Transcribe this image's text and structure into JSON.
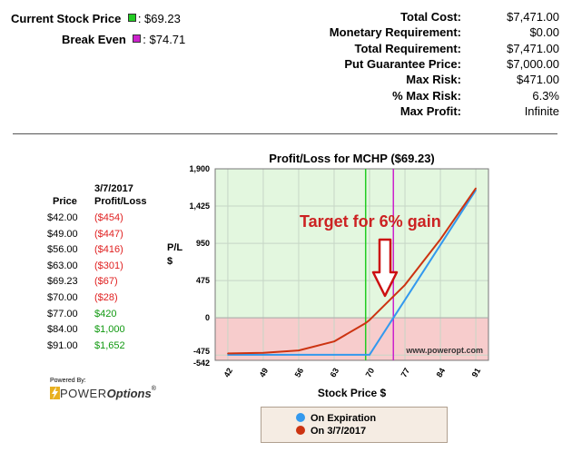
{
  "header": {
    "current_price_label": "Current Stock Price",
    "current_price_value": ": $69.23",
    "break_even_label": "Break Even",
    "break_even_value": ": $74.71",
    "current_marker_color": "#22cc22",
    "break_even_marker_color": "#cc22cc"
  },
  "summary": [
    {
      "label": "Total Cost:",
      "value": "$7,471.00"
    },
    {
      "label": "Monetary Requirement:",
      "value": "$0.00"
    },
    {
      "label": "Total Requirement:",
      "value": "$7,471.00"
    },
    {
      "label": "Put Guarantee Price:",
      "value": "$7,000.00"
    },
    {
      "label": "Max Risk:",
      "value": "$471.00"
    },
    {
      "label": "% Max Risk:",
      "value": "6.3%"
    },
    {
      "label": "Max Profit:",
      "value": "Infinite"
    }
  ],
  "pl_table": {
    "date_header": "3/7/2017",
    "price_header": "Price",
    "pl_header": "Profit/Loss",
    "rows": [
      {
        "price": "$42.00",
        "pl": "($454)",
        "sign": "neg"
      },
      {
        "price": "$49.00",
        "pl": "($447)",
        "sign": "neg"
      },
      {
        "price": "$56.00",
        "pl": "($416)",
        "sign": "neg"
      },
      {
        "price": "$63.00",
        "pl": "($301)",
        "sign": "neg"
      },
      {
        "price": "$69.23",
        "pl": "($67)",
        "sign": "neg"
      },
      {
        "price": "$70.00",
        "pl": "($28)",
        "sign": "neg"
      },
      {
        "price": "$77.00",
        "pl": "$420",
        "sign": "pos"
      },
      {
        "price": "$84.00",
        "pl": "$1,000",
        "sign": "pos"
      },
      {
        "price": "$91.00",
        "pl": "$1,652",
        "sign": "pos"
      }
    ]
  },
  "branding": {
    "powered_by": "Powered By:",
    "logo_text_a": "POWER",
    "logo_text_b": "Options",
    "watermark": "www.poweropt.com"
  },
  "chart_data": {
    "type": "line",
    "title": "Profit/Loss for MCHP ($69.23)",
    "xlabel": "Stock Price $",
    "ylabel": "P/L $",
    "ylabel_lines": [
      "P/L",
      "$"
    ],
    "xlim": [
      39.5,
      93.5
    ],
    "ylim": [
      -542,
      1900
    ],
    "x_ticks": [
      42,
      49,
      56,
      63,
      70,
      77,
      84,
      91
    ],
    "y_ticks": [
      {
        "value": 1900,
        "label": "1,900"
      },
      {
        "value": 1425,
        "label": "1,425"
      },
      {
        "value": 950,
        "label": "950"
      },
      {
        "value": 475,
        "label": "475"
      },
      {
        "value": 0,
        "label": "0"
      },
      {
        "value": -475,
        "label": "-475"
      },
      {
        "value": -542,
        "label": "-542"
      }
    ],
    "series": [
      {
        "name": "On Expiration",
        "color": "#3399ee",
        "x": [
          42,
          49,
          56,
          63,
          70,
          77,
          84,
          91
        ],
        "y": [
          -471,
          -471,
          -471,
          -471,
          -471,
          229,
          929,
          1629
        ]
      },
      {
        "name": "On 3/7/2017",
        "color": "#cc3311",
        "x": [
          42,
          49,
          56,
          63,
          69.23,
          70,
          77,
          84,
          91
        ],
        "y": [
          -454,
          -447,
          -416,
          -301,
          -67,
          -28,
          420,
          1000,
          1652
        ]
      }
    ],
    "vertical_lines": [
      {
        "x": 69.23,
        "color": "#22cc22"
      },
      {
        "x": 74.71,
        "color": "#cc22cc"
      }
    ],
    "annotation": "Target for 6% gain",
    "annotation_color": "#cc2222",
    "grid": true,
    "legend_placement": "bottom"
  }
}
